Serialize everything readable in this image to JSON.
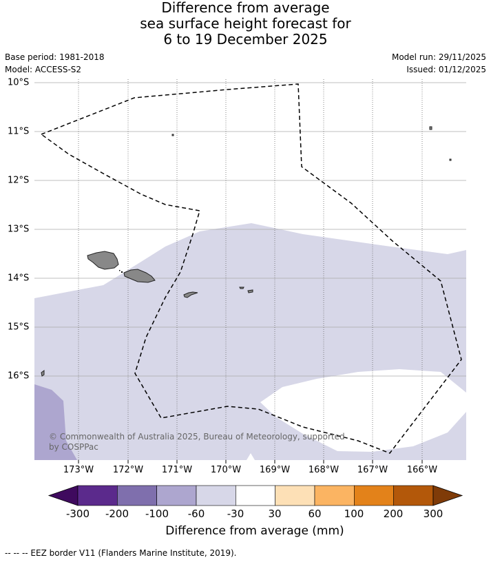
{
  "title": {
    "line1": "Difference from average",
    "line2": "sea surface height forecast for",
    "line3": "6 to 19 December 2025"
  },
  "meta": {
    "base_period": "Base period: 1981-2018",
    "model": "Model: ACCESS-S2",
    "model_run": "Model run: 29/11/2025",
    "issued": "Issued: 01/12/2025"
  },
  "axes": {
    "lat_labels": [
      "10°S",
      "11°S",
      "12°S",
      "13°S",
      "14°S",
      "15°S",
      "16°S"
    ],
    "lon_labels": [
      "173°W",
      "172°W",
      "171°W",
      "170°W",
      "169°W",
      "168°W",
      "167°W",
      "166°W"
    ]
  },
  "colorbar": {
    "title": "Difference from average (mm)",
    "tick_labels": [
      "-300",
      "-200",
      "-100",
      "-60",
      "-30",
      "30",
      "60",
      "100",
      "200",
      "300"
    ],
    "colors": [
      "#3f0a5e",
      "#5b2a8c",
      "#7f6fad",
      "#ada6cf",
      "#d7d7e8",
      "#ffffff",
      "#fde0b6",
      "#fbb462",
      "#e3821a",
      "#b3580a",
      "#7f3b08"
    ]
  },
  "copyright": "© Commonwealth of Australia 2025, Bureau of Meteorology, supported by COSPPac",
  "footnote": "-- -- -- EEZ border V11 (Flanders Marine Institute, 2019).",
  "colors": {
    "band_neg30_60": "#d7d7e8",
    "band_neg60_100": "#ada6cf",
    "land": "#888888",
    "grid": "#999999"
  }
}
